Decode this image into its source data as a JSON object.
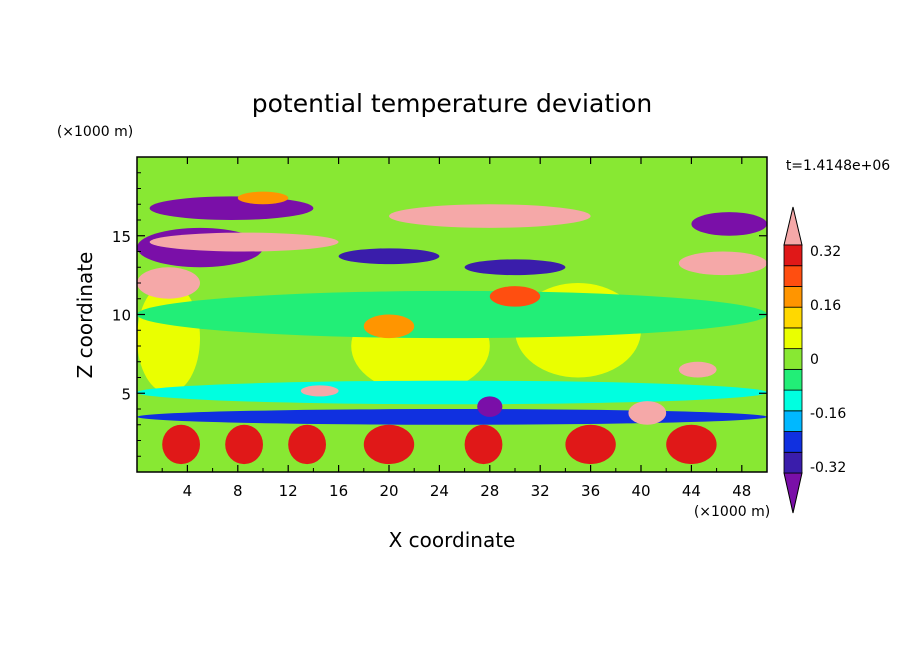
{
  "chart_data": {
    "type": "heatmap",
    "title": "potential temperature deviation",
    "xlabel": "X coordinate",
    "ylabel": "Z coordinate",
    "x_unit": "(×1000 m)",
    "y_unit": "(×1000 m)",
    "time_label": "t=1.4148e+06",
    "xlim": [
      0,
      50
    ],
    "ylim": [
      0,
      20
    ],
    "x_ticks": [
      4,
      8,
      12,
      16,
      20,
      24,
      28,
      32,
      36,
      40,
      44,
      48
    ],
    "y_ticks": [
      5,
      10,
      15
    ],
    "colorbar": {
      "colors": [
        "#7a0fa8",
        "#3a1dab",
        "#1030e0",
        "#00b8ff",
        "#00ffe0",
        "#22ee77",
        "#88e833",
        "#eaff00",
        "#ffd800",
        "#ff9500",
        "#ff4e10",
        "#e01818",
        "#f5a8a8"
      ],
      "labels": [
        "-0.32",
        "-0.16",
        "0",
        "0.16",
        "0.32"
      ],
      "label_values": [
        -0.32,
        -0.16,
        0,
        0.16,
        0.32
      ],
      "bounds": [
        -0.4,
        0.4
      ],
      "extend": "both"
    },
    "regions": [
      {
        "x": [
          0,
          50
        ],
        "z": [
          0,
          20
        ],
        "level": 0.0
      },
      {
        "x": [
          0,
          5
        ],
        "z": [
          5,
          12
        ],
        "level": 0.04
      },
      {
        "x": [
          17,
          28
        ],
        "z": [
          5,
          11
        ],
        "level": 0.04
      },
      {
        "x": [
          30,
          40
        ],
        "z": [
          6,
          12
        ],
        "level": 0.04
      },
      {
        "x": [
          0,
          50
        ],
        "z": [
          4.3,
          5.8
        ],
        "level": -0.12
      },
      {
        "x": [
          0,
          50
        ],
        "z": [
          8.5,
          11.5
        ],
        "level": -0.04
      },
      {
        "x": [
          1,
          14
        ],
        "z": [
          16,
          17.5
        ],
        "level": -0.36
      },
      {
        "x": [
          0,
          10
        ],
        "z": [
          13,
          15.5
        ],
        "level": -0.36
      },
      {
        "x": [
          16,
          24
        ],
        "z": [
          13.2,
          14.2
        ],
        "level": -0.32
      },
      {
        "x": [
          26,
          34
        ],
        "z": [
          12.5,
          13.5
        ],
        "level": -0.32
      },
      {
        "x": [
          44,
          50
        ],
        "z": [
          15,
          16.5
        ],
        "level": -0.36
      },
      {
        "x": [
          1,
          16
        ],
        "z": [
          14,
          15.2
        ],
        "level": 0.38
      },
      {
        "x": [
          0,
          5
        ],
        "z": [
          11,
          13
        ],
        "level": 0.38
      },
      {
        "x": [
          20,
          36
        ],
        "z": [
          15.5,
          17
        ],
        "level": 0.38
      },
      {
        "x": [
          43,
          50
        ],
        "z": [
          12.5,
          14
        ],
        "level": 0.38
      },
      {
        "x": [
          8,
          12
        ],
        "z": [
          17,
          17.8
        ],
        "level": 0.16
      },
      {
        "x": [
          28,
          32
        ],
        "z": [
          10.5,
          11.8
        ],
        "level": 0.24
      },
      {
        "x": [
          18,
          22
        ],
        "z": [
          8.5,
          10
        ],
        "level": 0.2
      },
      {
        "x": [
          0,
          50
        ],
        "z": [
          3,
          4
        ],
        "level": -0.24
      },
      {
        "x": [
          2,
          5
        ],
        "z": [
          0.5,
          3
        ],
        "level": 0.3
      },
      {
        "x": [
          7,
          10
        ],
        "z": [
          0.5,
          3
        ],
        "level": 0.3
      },
      {
        "x": [
          12,
          15
        ],
        "z": [
          0.5,
          3
        ],
        "level": 0.3
      },
      {
        "x": [
          18,
          22
        ],
        "z": [
          0.5,
          3
        ],
        "level": 0.3
      },
      {
        "x": [
          26,
          29
        ],
        "z": [
          0.5,
          3
        ],
        "level": 0.3
      },
      {
        "x": [
          34,
          38
        ],
        "z": [
          0.5,
          3
        ],
        "level": 0.3
      },
      {
        "x": [
          42,
          46
        ],
        "z": [
          0.5,
          3
        ],
        "level": 0.3
      },
      {
        "x": [
          27,
          29
        ],
        "z": [
          3.5,
          4.8
        ],
        "level": -0.34
      },
      {
        "x": [
          13,
          16
        ],
        "z": [
          4.8,
          5.5
        ],
        "level": 0.38
      },
      {
        "x": [
          39,
          42
        ],
        "z": [
          3,
          4.5
        ],
        "level": 0.38
      },
      {
        "x": [
          43,
          46
        ],
        "z": [
          6,
          7
        ],
        "level": 0.38
      }
    ]
  }
}
